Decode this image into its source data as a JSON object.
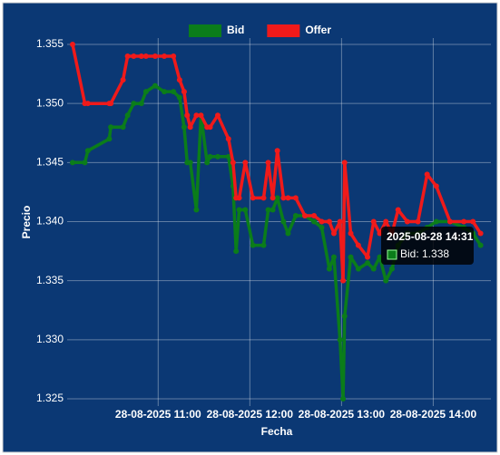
{
  "chart_data": {
    "type": "line",
    "x_label": "Fecha",
    "y_label": "Precio",
    "x": [
      "2025-08-28 10:04",
      "2025-08-28 10:12",
      "2025-08-28 10:14",
      "2025-08-28 10:28",
      "2025-08-28 10:29",
      "2025-08-28 10:37",
      "2025-08-28 10:40",
      "2025-08-28 10:44",
      "2025-08-28 10:49",
      "2025-08-28 10:52",
      "2025-08-28 10:58",
      "2025-08-28 11:04",
      "2025-08-28 11:10",
      "2025-08-28 11:14",
      "2025-08-28 11:17",
      "2025-08-28 11:19",
      "2025-08-28 11:21",
      "2025-08-28 11:25",
      "2025-08-28 11:28",
      "2025-08-28 11:32",
      "2025-08-28 11:34",
      "2025-08-28 11:39",
      "2025-08-28 11:46",
      "2025-08-28 11:49",
      "2025-08-28 11:51",
      "2025-08-28 11:53",
      "2025-08-28 11:57",
      "2025-08-28 12:02",
      "2025-08-28 12:09",
      "2025-08-28 12:12",
      "2025-08-28 12:15",
      "2025-08-28 12:18",
      "2025-08-28 12:22",
      "2025-08-28 12:25",
      "2025-08-28 12:30",
      "2025-08-28 12:36",
      "2025-08-28 12:42",
      "2025-08-28 12:47",
      "2025-08-28 12:52",
      "2025-08-28 12:55",
      "2025-08-28 12:59",
      "2025-08-28 13:01",
      "2025-08-28 13:02",
      "2025-08-28 13:06",
      "2025-08-28 13:11",
      "2025-08-28 13:17",
      "2025-08-28 13:21",
      "2025-08-28 13:25",
      "2025-08-28 13:29",
      "2025-08-28 13:33",
      "2025-08-28 13:37",
      "2025-08-28 13:43",
      "2025-08-28 13:50",
      "2025-08-28 13:56",
      "2025-08-28 14:02",
      "2025-08-28 14:11",
      "2025-08-28 14:20",
      "2025-08-28 14:26",
      "2025-08-28 14:31"
    ],
    "series": [
      {
        "name": "Bid",
        "color": "#0b7d1a",
        "values": [
          1.345,
          1.345,
          1.346,
          1.347,
          1.348,
          1.348,
          1.349,
          1.35,
          1.35,
          1.351,
          1.3515,
          1.351,
          1.351,
          1.3505,
          1.348,
          1.345,
          1.345,
          1.341,
          1.349,
          1.345,
          1.3455,
          1.3455,
          1.3455,
          1.343,
          1.3375,
          1.341,
          1.341,
          1.338,
          1.338,
          1.341,
          1.341,
          1.342,
          1.34,
          1.339,
          1.3405,
          1.3405,
          1.34,
          1.3395,
          1.336,
          1.337,
          1.33,
          1.325,
          1.332,
          1.337,
          1.336,
          1.3365,
          1.336,
          1.337,
          1.335,
          1.336,
          1.338,
          1.339,
          1.339,
          1.3395,
          1.34,
          1.34,
          1.3395,
          1.339,
          1.338
        ]
      },
      {
        "name": "Offer",
        "color": "#f01a1a",
        "values": [
          1.355,
          1.35,
          1.35,
          1.35,
          1.35,
          1.352,
          1.354,
          1.354,
          1.354,
          1.354,
          1.354,
          1.354,
          1.354,
          1.352,
          1.351,
          1.349,
          1.348,
          1.349,
          1.349,
          1.348,
          1.348,
          1.349,
          1.347,
          1.345,
          1.342,
          1.342,
          1.345,
          1.342,
          1.342,
          1.345,
          1.342,
          1.346,
          1.342,
          1.342,
          1.342,
          1.3405,
          1.3405,
          1.34,
          1.34,
          1.339,
          1.34,
          1.335,
          1.345,
          1.339,
          1.338,
          1.337,
          1.34,
          1.339,
          1.34,
          1.339,
          1.341,
          1.34,
          1.34,
          1.344,
          1.343,
          1.34,
          1.34,
          1.34,
          1.339
        ]
      }
    ],
    "xlim": [
      "2025-08-28 10:04",
      "2025-08-28 14:33"
    ],
    "xticks": [
      {
        "value": "2025-08-28 11:00",
        "label": "28-08-2025 11:00"
      },
      {
        "value": "2025-08-28 12:00",
        "label": "28-08-2025 12:00"
      },
      {
        "value": "2025-08-28 13:00",
        "label": "28-08-2025 13:00"
      },
      {
        "value": "2025-08-28 14:00",
        "label": "28-08-2025 14:00"
      }
    ],
    "ylim": [
      1.325,
      1.355
    ],
    "yticks": [
      1.325,
      {
        "value": 1.33,
        "label": "1.330"
      },
      1.335,
      {
        "value": 1.34,
        "label": "1.340"
      },
      1.345,
      {
        "value": 1.35,
        "label": "1.350"
      },
      1.355
    ],
    "grid": true,
    "legend": "top",
    "tooltip": {
      "title": "2025-08-28 14:31",
      "label": "Bid: 1.338"
    }
  }
}
